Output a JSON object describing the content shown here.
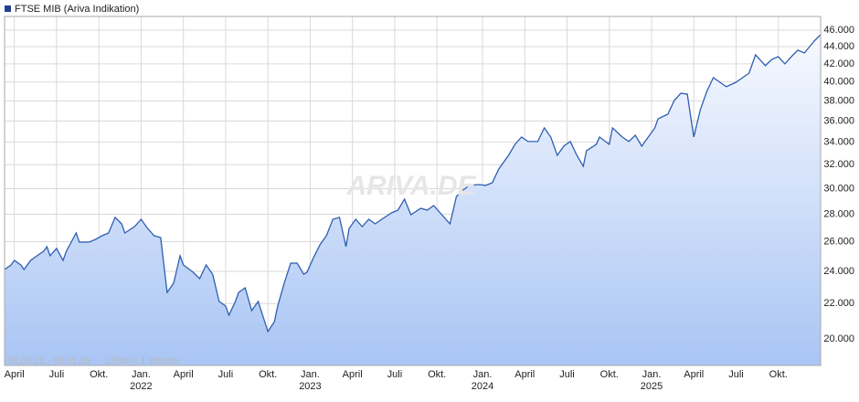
{
  "chart_data": {
    "type": "area",
    "title": "FTSE MIB (Ariva Indikation)",
    "watermark": "ARIVA.DE",
    "note": [
      "08.03.21 - 03.01.26",
      "1 Tick = 1 Woche"
    ],
    "color": "#2e5fb0",
    "log": true,
    "grid": true,
    "x": [
      0,
      2,
      3,
      5,
      6,
      8,
      10,
      12,
      13,
      14,
      16,
      18,
      19,
      22,
      23,
      26,
      28,
      30,
      32,
      34,
      36,
      37,
      40,
      42,
      44,
      46,
      48,
      50,
      52,
      54,
      55,
      58,
      60,
      62,
      64,
      66,
      68,
      69,
      71,
      72,
      74,
      76,
      78,
      81,
      83,
      84,
      86,
      88,
      90,
      92,
      93,
      95,
      97,
      99,
      101,
      103,
      105,
      106,
      108,
      110,
      112,
      114,
      116,
      119,
      121,
      123,
      125,
      128,
      130,
      132,
      134,
      137,
      139,
      141,
      143,
      146,
      148,
      150,
      152,
      155,
      157,
      159,
      161,
      164,
      166,
      168,
      170,
      172,
      174,
      176,
      178,
      179,
      182,
      183,
      186,
      187,
      190,
      192,
      194,
      196,
      197,
      200,
      201,
      204,
      206,
      208,
      210,
      212,
      214,
      216,
      218,
      220,
      222,
      225,
      227,
      229,
      231,
      234,
      236,
      238,
      240,
      242,
      244,
      246,
      249,
      251
    ],
    "values": [
      24120,
      24420,
      24720,
      24420,
      24120,
      24720,
      25030,
      25340,
      25650,
      25030,
      25530,
      24720,
      25340,
      26620,
      25970,
      25970,
      26160,
      26420,
      26620,
      27760,
      27280,
      26620,
      27080,
      27620,
      26950,
      26420,
      26290,
      22680,
      23250,
      25030,
      24420,
      23940,
      23530,
      24420,
      23820,
      22130,
      21860,
      21320,
      22130,
      22680,
      22960,
      21590,
      22130,
      20400,
      20960,
      21860,
      23250,
      24540,
      24540,
      23820,
      23940,
      24900,
      25780,
      26420,
      27620,
      27760,
      25650,
      26950,
      27620,
      27080,
      27620,
      27280,
      27620,
      28100,
      28310,
      29160,
      27960,
      28450,
      28310,
      28660,
      28100,
      27280,
      29380,
      29890,
      30260,
      30330,
      30260,
      30480,
      31630,
      32820,
      33800,
      34480,
      34060,
      34060,
      35340,
      34480,
      32820,
      33640,
      34060,
      32820,
      31860,
      33230,
      33800,
      34480,
      33800,
      35340,
      34480,
      34060,
      34650,
      33640,
      34060,
      35340,
      36220,
      36670,
      38060,
      38800,
      38710,
      34480,
      37120,
      39000,
      40470,
      39970,
      39490,
      39970,
      40470,
      40970,
      43040,
      41790,
      42510,
      42830,
      42000,
      42830,
      43580,
      43250,
      44660,
      45440
    ],
    "xlim": [
      0,
      251
    ],
    "xticks": [
      {
        "value": 3,
        "label": "April"
      },
      {
        "value": 16,
        "label": "Juli"
      },
      {
        "value": 29,
        "label": "Okt."
      },
      {
        "value": 42,
        "label": "Jan.",
        "year": "2022"
      },
      {
        "value": 55,
        "label": "April"
      },
      {
        "value": 68,
        "label": "Juli"
      },
      {
        "value": 81,
        "label": "Okt."
      },
      {
        "value": 94,
        "label": "Jan.",
        "year": "2023"
      },
      {
        "value": 107,
        "label": "April"
      },
      {
        "value": 120,
        "label": "Juli"
      },
      {
        "value": 133,
        "label": "Okt."
      },
      {
        "value": 147,
        "label": "Jan.",
        "year": "2024"
      },
      {
        "value": 160,
        "label": "April"
      },
      {
        "value": 173,
        "label": "Juli"
      },
      {
        "value": 186,
        "label": "Okt."
      },
      {
        "value": 199,
        "label": "Jan.",
        "year": "2025"
      },
      {
        "value": 212,
        "label": "April"
      },
      {
        "value": 225,
        "label": "Juli"
      },
      {
        "value": 238,
        "label": "Okt."
      }
    ],
    "ylim": [
      18620,
      47730
    ],
    "yticks": [
      {
        "value": 20000,
        "label": "20.000"
      },
      {
        "value": 22000,
        "label": "22.000"
      },
      {
        "value": 24000,
        "label": "24.000"
      },
      {
        "value": 26000,
        "label": "26.000"
      },
      {
        "value": 28000,
        "label": "28.000"
      },
      {
        "value": 30000,
        "label": "30.000"
      },
      {
        "value": 32000,
        "label": "32.000"
      },
      {
        "value": 34000,
        "label": "34.000"
      },
      {
        "value": 36000,
        "label": "36.000"
      },
      {
        "value": 38000,
        "label": "38.000"
      },
      {
        "value": 40000,
        "label": "40.000"
      },
      {
        "value": 42000,
        "label": "42.000"
      },
      {
        "value": 44000,
        "label": "44.000"
      },
      {
        "value": 46000,
        "label": "46.000"
      }
    ]
  }
}
